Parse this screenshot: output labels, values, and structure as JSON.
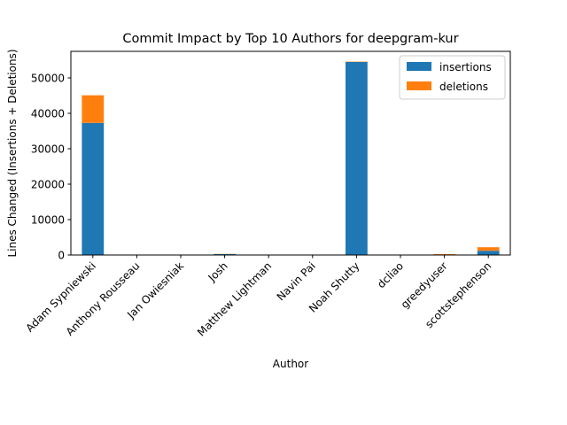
{
  "chart_data": {
    "type": "bar",
    "stacked": true,
    "title": "Commit Impact by Top 10 Authors for deepgram-kur",
    "xlabel": "Author",
    "ylabel": "Lines Changed (Insertions + Deletions)",
    "ylim": [
      0,
      57500
    ],
    "yticks": [
      0,
      10000,
      20000,
      30000,
      40000,
      50000
    ],
    "ytick_labels": [
      "0",
      "10000",
      "20000",
      "30000",
      "40000",
      "50000"
    ],
    "categories": [
      "Adam Sypniewski",
      "Anthony Rousseau",
      "Jan Owiesniak",
      "Josh",
      "Matthew Lightman",
      "Navin Pai",
      "Noah Shutty",
      "dcliao",
      "greedyuser",
      "scottstephenson"
    ],
    "series": [
      {
        "name": "insertions",
        "color": "#1f77b4",
        "values": [
          37300,
          30,
          20,
          250,
          20,
          15,
          54500,
          20,
          60,
          1200
        ]
      },
      {
        "name": "deletions",
        "color": "#ff7f0e",
        "values": [
          7800,
          10,
          5,
          60,
          5,
          5,
          100,
          10,
          200,
          1000
        ]
      }
    ],
    "legend_position": "top-right",
    "grid": false
  }
}
